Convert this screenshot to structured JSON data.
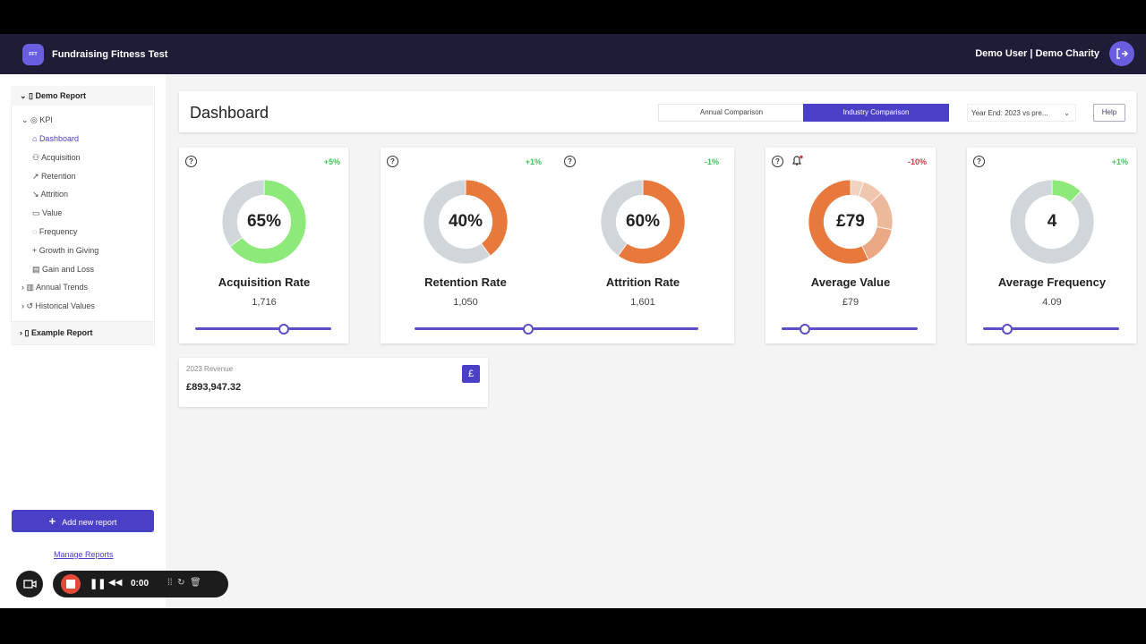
{
  "header": {
    "logo": "FFT",
    "app_title": "Fundraising Fitness Test",
    "user": "Demo User | Demo Charity"
  },
  "sidebar": {
    "report": "Demo Report",
    "group": "KPI",
    "items": [
      "Dashboard",
      "Acquisition",
      "Retention",
      "Attrition",
      "Value",
      "Frequency",
      "Growth in Giving",
      "Gain and Loss"
    ],
    "folders": [
      "Annual Trends",
      "Historical Values"
    ],
    "other_report": "Example Report",
    "add_button": "Add new report",
    "manage_link": "Manage Reports"
  },
  "toolbar": {
    "title": "Dashboard",
    "tabs": [
      "Annual Comparison",
      "Industry Comparison"
    ],
    "select": "Year End: 2023 vs pre...",
    "help": "Help"
  },
  "cards": [
    {
      "metrics": [
        {
          "change": "+5%",
          "change_color": "#3cc35a",
          "center": "65%",
          "title": "Acquisition Rate",
          "count": "1,716",
          "ring": [
            {
              "value": 65,
              "color": "#8de97a"
            },
            {
              "value": 35,
              "color": "#d1d6db"
            }
          ]
        }
      ]
    },
    {
      "metrics": [
        {
          "change": "+1%",
          "change_color": "#3cc35a",
          "center": "40%",
          "title": "Retention Rate",
          "count": "1,050",
          "ring": [
            {
              "value": 40,
              "color": "#e8793c"
            },
            {
              "value": 60,
              "color": "#d1d6db"
            }
          ]
        },
        {
          "change": "-1%",
          "change_color": "#3cc35a",
          "center": "60%",
          "title": "Attrition Rate",
          "count": "1,601",
          "ring": [
            {
              "value": 60,
              "color": "#e8793c"
            },
            {
              "value": 40,
              "color": "#d1d6db"
            }
          ]
        }
      ]
    },
    {
      "metrics": [
        {
          "change": "-10%",
          "change_color": "#d9343f",
          "center": "£79",
          "title": "Average Value",
          "count": "£79",
          "ring": [
            {
              "value": 5,
              "color": "#f2d3c1"
            },
            {
              "value": 8,
              "color": "#efc6ae"
            },
            {
              "value": 15,
              "color": "#ecb99b"
            },
            {
              "value": 15,
              "color": "#eaa984"
            },
            {
              "value": 57,
              "color": "#e8793c"
            }
          ]
        }
      ]
    },
    {
      "metrics": [
        {
          "change": "+1%",
          "change_color": "#3cc35a",
          "center": "4",
          "title": "Average Frequency",
          "count": "4.09",
          "ring": [
            {
              "value": 12,
              "color": "#8de97a"
            },
            {
              "value": 88,
              "color": "#d1d6db"
            }
          ]
        }
      ]
    }
  ],
  "revenue": {
    "label": "2023 Revenue",
    "value": "£893,947.32",
    "icon": "£"
  },
  "recorder": {
    "time": "0:00"
  }
}
